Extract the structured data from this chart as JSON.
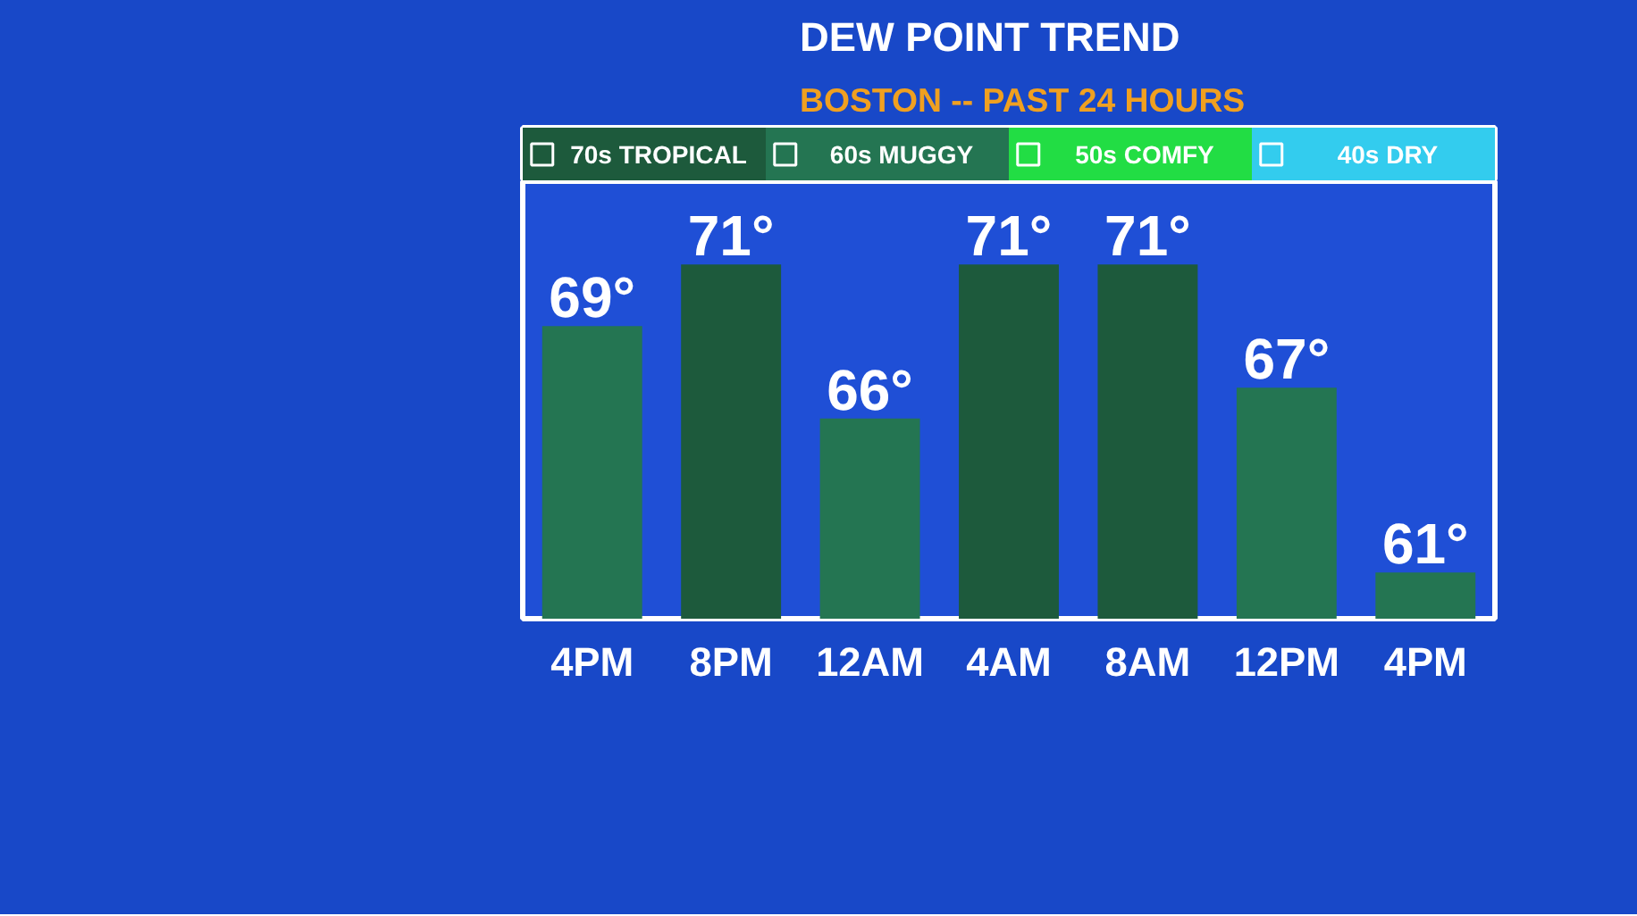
{
  "chart_data": {
    "type": "bar",
    "title": "DEW POINT TREND",
    "subtitle": "BOSTON -- PAST 24 HOURS",
    "categories": [
      "4PM",
      "8PM",
      "12AM",
      "4AM",
      "8AM",
      "12PM",
      "4PM"
    ],
    "series": [
      {
        "name": "70s TROPICAL",
        "color": "#1d5a3c",
        "values": [
          null,
          71,
          null,
          71,
          71,
          null,
          null
        ],
        "value_labels": [
          null,
          "71°",
          null,
          "71°",
          "71°",
          null,
          null
        ]
      },
      {
        "name": "60s MUGGY",
        "color": "#247552",
        "values": [
          69,
          null,
          66,
          null,
          null,
          67,
          61
        ],
        "value_labels": [
          "69°",
          null,
          "66°",
          null,
          null,
          "67°",
          "61°"
        ]
      },
      {
        "name": "50s COMFY",
        "color": "#22dd44",
        "values": [
          null,
          null,
          null,
          null,
          null,
          null,
          null
        ]
      },
      {
        "name": "40s DRY",
        "color": "#33ccee",
        "values": [
          null,
          null,
          null,
          null,
          null,
          null,
          null
        ]
      }
    ],
    "ylim": [
      59.5,
      73.7
    ],
    "tick_labels": "x",
    "legend": "top"
  }
}
